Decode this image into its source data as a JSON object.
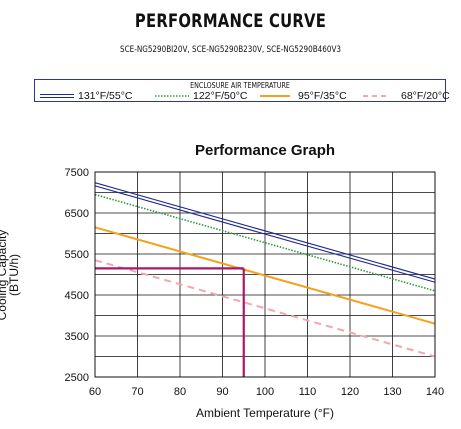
{
  "header": {
    "title": "PERFORMANCE CURVE",
    "models": "SCE-NG5290BI20V, SCE-NG5290B230V, SCE-NG5290B460V3"
  },
  "legend": {
    "caption": "ENCLOSURE AIR TEMPERATURE"
  },
  "chart_data": {
    "type": "line",
    "title": "Performance Graph",
    "xlabel": "Ambient Temperature (°F)",
    "ylabel": "Cooling Capacity (BTU/h)",
    "xlim": [
      60,
      140
    ],
    "ylim": [
      2500,
      7500
    ],
    "xticks": [
      60,
      70,
      80,
      90,
      100,
      110,
      120,
      130,
      140
    ],
    "yticks": [
      2500,
      3500,
      4500,
      5500,
      6500,
      7500
    ],
    "grid": true,
    "legend_position": "top",
    "series": [
      {
        "name": "131°F/55°C",
        "color": "#1f2a8c",
        "style": "double",
        "x": [
          60,
          140
        ],
        "y": [
          7200,
          4850
        ]
      },
      {
        "name": "122°F/50°C",
        "color": "#2e9a3c",
        "style": "dotted",
        "x": [
          60,
          140
        ],
        "y": [
          6950,
          4600
        ]
      },
      {
        "name": "95°F/35°C",
        "color": "#f5a11e",
        "style": "solid",
        "x": [
          60,
          140
        ],
        "y": [
          6150,
          3800
        ]
      },
      {
        "name": "68°F/20°C",
        "color": "#f2a7ae",
        "style": "dashed",
        "x": [
          60,
          140
        ],
        "y": [
          5350,
          3000
        ]
      }
    ],
    "annotation": {
      "color": "#a8186b",
      "x": 95,
      "y": 5150
    }
  }
}
